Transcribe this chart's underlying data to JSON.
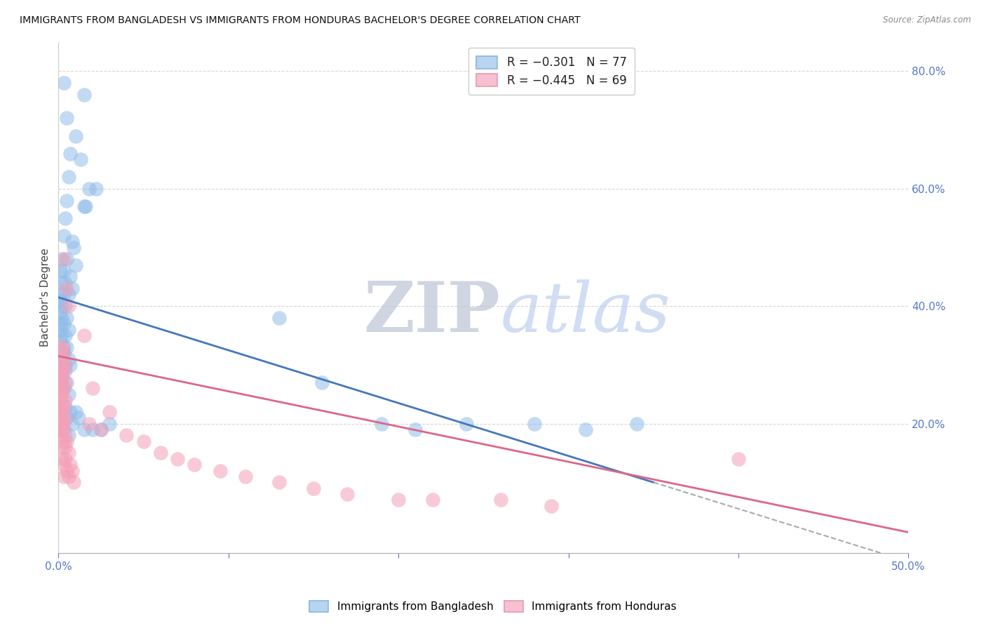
{
  "title": "IMMIGRANTS FROM BANGLADESH VS IMMIGRANTS FROM HONDURAS BACHELOR'S DEGREE CORRELATION CHART",
  "source": "Source: ZipAtlas.com",
  "ylabel": "Bachelor's Degree",
  "xlim": [
    0.0,
    0.5
  ],
  "ylim": [
    -0.02,
    0.85
  ],
  "bangladesh_color": "#90bce8",
  "honduras_color": "#f4a0b8",
  "bangladesh_edge": "#6898cc",
  "honduras_edge": "#e07090",
  "background_color": "#ffffff",
  "grid_color": "#cccccc",
  "title_fontsize": 10.5,
  "axis_label_color": "#5577cc",
  "right_ytick_vals": [
    0.2,
    0.4,
    0.6,
    0.8
  ],
  "right_ytick_labels": [
    "20.0%",
    "40.0%",
    "60.0%",
    "80.0%"
  ],
  "xtick_vals": [
    0.0,
    0.1,
    0.2,
    0.3,
    0.4,
    0.5
  ],
  "xtick_show_labels": [
    true,
    false,
    false,
    false,
    false,
    true
  ],
  "xtick_labels_shown": [
    "0.0%",
    "50.0%"
  ],
  "blue_reg_intercept": 0.415,
  "blue_reg_slope": -0.9,
  "pink_reg_intercept": 0.315,
  "pink_reg_slope": -0.6,
  "blue_line_xmax": 0.35,
  "pink_line_xmax": 0.5,
  "dashed_color": "#aaaaaa",
  "blue_dots": [
    [
      0.003,
      0.78
    ],
    [
      0.015,
      0.76
    ],
    [
      0.005,
      0.72
    ],
    [
      0.01,
      0.69
    ],
    [
      0.007,
      0.66
    ],
    [
      0.013,
      0.65
    ],
    [
      0.006,
      0.62
    ],
    [
      0.018,
      0.6
    ],
    [
      0.022,
      0.6
    ],
    [
      0.005,
      0.58
    ],
    [
      0.015,
      0.57
    ],
    [
      0.016,
      0.57
    ],
    [
      0.004,
      0.55
    ],
    [
      0.003,
      0.52
    ],
    [
      0.008,
      0.51
    ],
    [
      0.009,
      0.5
    ],
    [
      0.002,
      0.48
    ],
    [
      0.005,
      0.48
    ],
    [
      0.01,
      0.47
    ],
    [
      0.001,
      0.46
    ],
    [
      0.003,
      0.46
    ],
    [
      0.007,
      0.45
    ],
    [
      0.002,
      0.44
    ],
    [
      0.004,
      0.44
    ],
    [
      0.008,
      0.43
    ],
    [
      0.001,
      0.42
    ],
    [
      0.003,
      0.42
    ],
    [
      0.006,
      0.42
    ],
    [
      0.001,
      0.41
    ],
    [
      0.002,
      0.4
    ],
    [
      0.004,
      0.4
    ],
    [
      0.001,
      0.39
    ],
    [
      0.002,
      0.38
    ],
    [
      0.005,
      0.38
    ],
    [
      0.001,
      0.37
    ],
    [
      0.003,
      0.37
    ],
    [
      0.006,
      0.36
    ],
    [
      0.001,
      0.36
    ],
    [
      0.002,
      0.35
    ],
    [
      0.004,
      0.35
    ],
    [
      0.001,
      0.34
    ],
    [
      0.003,
      0.33
    ],
    [
      0.005,
      0.33
    ],
    [
      0.002,
      0.32
    ],
    [
      0.003,
      0.32
    ],
    [
      0.006,
      0.31
    ],
    [
      0.002,
      0.3
    ],
    [
      0.004,
      0.3
    ],
    [
      0.007,
      0.3
    ],
    [
      0.002,
      0.29
    ],
    [
      0.004,
      0.29
    ],
    [
      0.002,
      0.28
    ],
    [
      0.005,
      0.27
    ],
    [
      0.003,
      0.26
    ],
    [
      0.006,
      0.25
    ],
    [
      0.004,
      0.23
    ],
    [
      0.007,
      0.22
    ],
    [
      0.005,
      0.21
    ],
    [
      0.008,
      0.2
    ],
    [
      0.003,
      0.19
    ],
    [
      0.006,
      0.18
    ],
    [
      0.01,
      0.22
    ],
    [
      0.012,
      0.21
    ],
    [
      0.015,
      0.19
    ],
    [
      0.02,
      0.19
    ],
    [
      0.025,
      0.19
    ],
    [
      0.03,
      0.2
    ],
    [
      0.13,
      0.38
    ],
    [
      0.155,
      0.27
    ],
    [
      0.19,
      0.2
    ],
    [
      0.21,
      0.19
    ],
    [
      0.24,
      0.2
    ],
    [
      0.28,
      0.2
    ],
    [
      0.31,
      0.19
    ],
    [
      0.34,
      0.2
    ],
    [
      0.001,
      0.3
    ],
    [
      0.002,
      0.27
    ]
  ],
  "pink_dots": [
    [
      0.003,
      0.48
    ],
    [
      0.005,
      0.43
    ],
    [
      0.006,
      0.4
    ],
    [
      0.015,
      0.35
    ],
    [
      0.001,
      0.33
    ],
    [
      0.002,
      0.33
    ],
    [
      0.003,
      0.32
    ],
    [
      0.001,
      0.31
    ],
    [
      0.002,
      0.31
    ],
    [
      0.004,
      0.3
    ],
    [
      0.001,
      0.3
    ],
    [
      0.002,
      0.29
    ],
    [
      0.003,
      0.29
    ],
    [
      0.001,
      0.28
    ],
    [
      0.002,
      0.28
    ],
    [
      0.004,
      0.27
    ],
    [
      0.001,
      0.27
    ],
    [
      0.002,
      0.26
    ],
    [
      0.003,
      0.26
    ],
    [
      0.001,
      0.25
    ],
    [
      0.002,
      0.25
    ],
    [
      0.004,
      0.24
    ],
    [
      0.001,
      0.24
    ],
    [
      0.002,
      0.23
    ],
    [
      0.003,
      0.23
    ],
    [
      0.001,
      0.22
    ],
    [
      0.002,
      0.22
    ],
    [
      0.004,
      0.21
    ],
    [
      0.001,
      0.21
    ],
    [
      0.002,
      0.2
    ],
    [
      0.003,
      0.2
    ],
    [
      0.001,
      0.19
    ],
    [
      0.002,
      0.19
    ],
    [
      0.004,
      0.18
    ],
    [
      0.001,
      0.18
    ],
    [
      0.003,
      0.17
    ],
    [
      0.005,
      0.17
    ],
    [
      0.002,
      0.16
    ],
    [
      0.004,
      0.16
    ],
    [
      0.006,
      0.15
    ],
    [
      0.002,
      0.14
    ],
    [
      0.004,
      0.14
    ],
    [
      0.007,
      0.13
    ],
    [
      0.003,
      0.13
    ],
    [
      0.005,
      0.12
    ],
    [
      0.008,
      0.12
    ],
    [
      0.003,
      0.11
    ],
    [
      0.006,
      0.11
    ],
    [
      0.009,
      0.1
    ],
    [
      0.02,
      0.26
    ],
    [
      0.03,
      0.22
    ],
    [
      0.018,
      0.2
    ],
    [
      0.025,
      0.19
    ],
    [
      0.04,
      0.18
    ],
    [
      0.05,
      0.17
    ],
    [
      0.06,
      0.15
    ],
    [
      0.07,
      0.14
    ],
    [
      0.08,
      0.13
    ],
    [
      0.095,
      0.12
    ],
    [
      0.11,
      0.11
    ],
    [
      0.13,
      0.1
    ],
    [
      0.15,
      0.09
    ],
    [
      0.17,
      0.08
    ],
    [
      0.2,
      0.07
    ],
    [
      0.22,
      0.07
    ],
    [
      0.26,
      0.07
    ],
    [
      0.29,
      0.06
    ],
    [
      0.4,
      0.14
    ]
  ]
}
